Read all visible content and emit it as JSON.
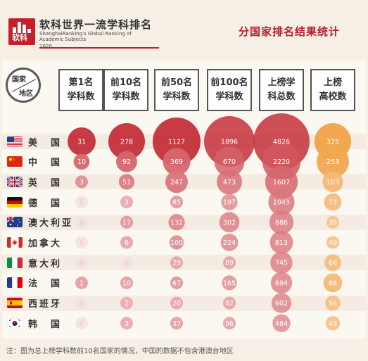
{
  "header": {
    "logo_text": "软科",
    "brand_title": "软科世界一流学科排名",
    "brand_subtitle": "ShanghaiRanking's Global Ranking of Academic Subjects",
    "brand_year": "2020",
    "page_title": "分国家排名结果统计"
  },
  "corner": {
    "top": "国家",
    "bottom": "地区"
  },
  "colors": {
    "red_scale": [
      "#f6d3d3",
      "#c4303a"
    ],
    "orange_scale": [
      "#fbe2c4",
      "#f0a24a"
    ],
    "brand": "#c81e2a"
  },
  "footnote": "注：图为总上榜学科数前10名国家的情况，中国的数据不包含港澳台地区",
  "chart_data": {
    "type": "table",
    "columns": [
      {
        "lines": [
          "第1名",
          "学科数"
        ]
      },
      {
        "lines": [
          "前10名",
          "学科数"
        ]
      },
      {
        "lines": [
          "前50名",
          "学科数"
        ]
      },
      {
        "lines": [
          "前100名",
          "学科数"
        ]
      },
      {
        "lines": [
          "上榜学",
          "科总数"
        ]
      },
      {
        "lines": [
          "上榜",
          "高校数"
        ]
      }
    ],
    "rows": [
      {
        "country": "美　国",
        "flag": "us-flag-icon",
        "values": [
          31,
          278,
          1127,
          1896,
          4826,
          325
        ]
      },
      {
        "country": "中　国",
        "flag": "china-flag-icon",
        "values": [
          10,
          92,
          369,
          670,
          2220,
          253
        ]
      },
      {
        "country": "英　国",
        "flag": "uk-flag-icon",
        "values": [
          3,
          51,
          247,
          473,
          1607,
          103
        ]
      },
      {
        "country": "德　国",
        "flag": "germany-flag-icon",
        "values": [
          0,
          3,
          65,
          197,
          1043,
          73
        ]
      },
      {
        "country": "澳大利亚",
        "flag": "australia-flag-icon",
        "values": [
          0,
          17,
          132,
          302,
          886,
          39
        ]
      },
      {
        "country": "加拿大",
        "flag": "canada-flag-icon",
        "values": [
          0,
          6,
          100,
          224,
          813,
          40
        ]
      },
      {
        "country": "意大利",
        "flag": "italy-flag-icon",
        "values": [
          0,
          0,
          29,
          89,
          745,
          68
        ]
      },
      {
        "country": "法　国",
        "flag": "france-flag-icon",
        "values": [
          1,
          10,
          67,
          165,
          694,
          86
        ]
      },
      {
        "country": "西班牙",
        "flag": "spain-flag-icon",
        "values": [
          0,
          2,
          20,
          82,
          602,
          56
        ]
      },
      {
        "country": "韩　国",
        "flag": "korea-flag-icon",
        "values": [
          0,
          3,
          37,
          96,
          484,
          49
        ]
      }
    ]
  }
}
